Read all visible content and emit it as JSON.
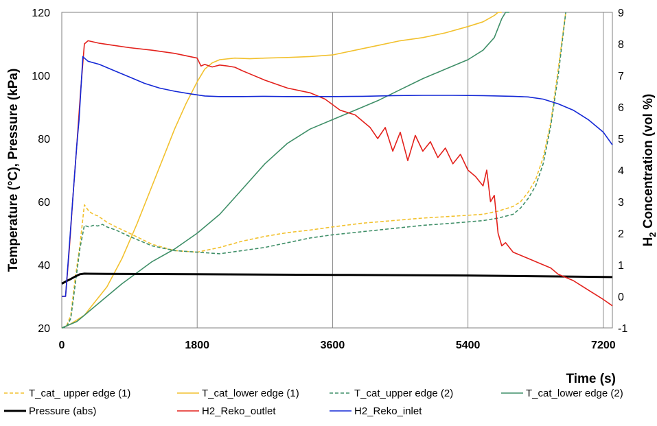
{
  "chart_data": {
    "type": "line",
    "title": "",
    "xlabel": "Time (s)",
    "ylabel_left": "Temperature (°C), Pressure (kPa)",
    "ylabel_right_main": "H",
    "ylabel_right_sub": "2",
    "ylabel_right_rest": " Concentration (vol %)",
    "xlim": [
      0,
      7320
    ],
    "ylim_left": [
      20,
      120
    ],
    "ylim_right": [
      -1,
      9
    ],
    "x_ticks": [
      0,
      1800,
      3600,
      5400,
      7200
    ],
    "y_left_ticks": [
      20,
      40,
      60,
      80,
      100,
      120
    ],
    "y_right_ticks": [
      -1,
      0,
      1,
      2,
      3,
      4,
      5,
      6,
      7,
      8,
      9
    ],
    "grid": "vertical",
    "legend_position": "bottom",
    "series": [
      {
        "name": "T_cat_ upper edge (1)",
        "axis": "left",
        "color": "#f2c12e",
        "dash": "dashed",
        "x": [
          0,
          60,
          120,
          180,
          240,
          300,
          360,
          420,
          480,
          600,
          720,
          900,
          1200,
          1500,
          1800,
          2100,
          2400,
          2700,
          3000,
          3300,
          3600,
          4000,
          4400,
          4800,
          5200,
          5600,
          5800,
          6000,
          6100,
          6200,
          6300,
          6400,
          6500,
          6600,
          6700
        ],
        "y": [
          20,
          20.5,
          24,
          36,
          46,
          59,
          57,
          56,
          55.5,
          53.5,
          52,
          50,
          46.5,
          44.5,
          44,
          45.5,
          47.5,
          49,
          50.2,
          51,
          52,
          53.2,
          54,
          54.8,
          55.4,
          56,
          57,
          58.5,
          60,
          63,
          67,
          74,
          85,
          102,
          120
        ]
      },
      {
        "name": "T_cat_lower edge (1)",
        "axis": "left",
        "color": "#f2c12e",
        "dash": "solid",
        "x": [
          0,
          100,
          200,
          300,
          400,
          600,
          800,
          1000,
          1200,
          1400,
          1500,
          1650,
          1800,
          1900,
          2000,
          2100,
          2300,
          2500,
          2700,
          3000,
          3300,
          3600,
          3900,
          4200,
          4500,
          4800,
          5100,
          5400,
          5600,
          5750,
          5800,
          5850
        ],
        "y": [
          20,
          21,
          22.5,
          24,
          27,
          33,
          42,
          53,
          65,
          77,
          83,
          91,
          98,
          102,
          104,
          105,
          105.5,
          105.3,
          105.5,
          105.7,
          106,
          106.5,
          108,
          109.5,
          111,
          112,
          113.5,
          115.5,
          117,
          119,
          120,
          120
        ]
      },
      {
        "name": "T_cat_upper edge (2)",
        "axis": "left",
        "color": "#3f8f68",
        "dash": "dashed",
        "x": [
          0,
          60,
          120,
          180,
          240,
          300,
          360,
          420,
          480,
          540,
          600,
          720,
          900,
          1200,
          1500,
          1800,
          2100,
          2400,
          2700,
          3000,
          3300,
          3600,
          4000,
          4400,
          4800,
          5200,
          5600,
          5800,
          6000,
          6100,
          6200,
          6300,
          6400,
          6500,
          6600,
          6700
        ],
        "y": [
          20,
          20.2,
          23,
          34,
          45,
          52.5,
          52,
          52.5,
          52.3,
          52.8,
          52,
          51,
          49,
          46,
          44.5,
          44,
          43.5,
          44.5,
          45.5,
          47,
          48.5,
          49.5,
          50.5,
          51.5,
          52.5,
          53.2,
          54,
          54.8,
          56,
          58,
          61,
          65,
          72,
          84,
          100,
          120
        ]
      },
      {
        "name": "T_cat_lower edge (2)",
        "axis": "left",
        "color": "#3f8f68",
        "dash": "solid",
        "x": [
          0,
          200,
          400,
          600,
          800,
          1000,
          1200,
          1500,
          1800,
          2100,
          2400,
          2700,
          3000,
          3300,
          3600,
          3900,
          4200,
          4500,
          4800,
          5100,
          5400,
          5600,
          5750,
          5850,
          5900,
          5950
        ],
        "y": [
          20,
          22,
          26,
          30,
          34,
          37.5,
          41,
          45,
          50,
          56,
          64,
          72,
          78.5,
          83,
          86,
          89,
          92,
          95.5,
          99,
          102,
          105,
          108,
          112,
          118,
          120,
          120
        ]
      },
      {
        "name": "Pressure (abs)",
        "axis": "left",
        "color": "#000000",
        "dash": "solid",
        "x": [
          0,
          60,
          120,
          180,
          240,
          300,
          600,
          1800,
          3600,
          5400,
          6600,
          7320
        ],
        "y": [
          34,
          34.8,
          35.5,
          36.3,
          37,
          37.2,
          37.1,
          37,
          36.8,
          36.6,
          36.3,
          36.1
        ]
      },
      {
        "name": "H2_Reko_outlet",
        "axis": "left",
        "color": "#e3211c",
        "dash": "solid",
        "x": [
          0,
          50,
          100,
          150,
          200,
          250,
          300,
          350,
          500,
          700,
          900,
          1200,
          1500,
          1800,
          1850,
          1900,
          2000,
          2100,
          2200,
          2300,
          2400,
          2500,
          2700,
          3000,
          3300,
          3500,
          3700,
          3900,
          4100,
          4200,
          4300,
          4400,
          4500,
          4600,
          4700,
          4800,
          4900,
          5000,
          5100,
          5200,
          5300,
          5400,
          5500,
          5600,
          5650,
          5700,
          5750,
          5800,
          5850,
          5900,
          6000,
          6200,
          6400,
          6500,
          6600,
          6700,
          6800,
          6900,
          7000,
          7100,
          7200,
          7320
        ],
        "y": [
          30,
          30,
          45,
          62,
          78,
          95,
          110,
          111,
          110.2,
          109.5,
          108.8,
          108,
          107,
          105.5,
          103,
          103.5,
          102.7,
          103.3,
          103,
          102.6,
          101.5,
          100.5,
          98.5,
          96,
          94.5,
          92.5,
          89,
          87.5,
          83.5,
          80,
          83.5,
          76,
          82,
          73,
          81,
          76,
          79,
          74,
          77,
          72,
          75,
          70,
          68,
          65,
          70,
          60,
          62,
          50,
          46,
          47,
          44,
          42,
          40,
          39,
          37,
          36,
          35,
          33.5,
          32,
          30.5,
          29,
          27
        ]
      },
      {
        "name": "H2_Reko_inlet",
        "axis": "left",
        "color": "#1428d6",
        "dash": "solid",
        "x": [
          0,
          50,
          100,
          150,
          200,
          230,
          280,
          300,
          350,
          500,
          700,
          900,
          1100,
          1300,
          1500,
          1700,
          1900,
          2100,
          2400,
          2700,
          3000,
          3300,
          3600,
          4000,
          4400,
          4800,
          5200,
          5600,
          6000,
          6200,
          6400,
          6600,
          6800,
          7000,
          7200,
          7320
        ],
        "y": [
          30,
          30,
          46,
          62,
          78,
          86,
          106,
          105.5,
          104.5,
          103.5,
          101.5,
          99.5,
          97.5,
          96,
          95,
          94.2,
          93.5,
          93.3,
          93.3,
          93.4,
          93.3,
          93.3,
          93.3,
          93.4,
          93.6,
          93.7,
          93.7,
          93.6,
          93.4,
          93.2,
          92.5,
          91,
          89,
          86,
          82,
          78
        ]
      }
    ]
  },
  "legend_rows": [
    [
      "T_cat_ upper edge (1)",
      "T_cat_lower edge (1)",
      "T_cat_upper edge (2)",
      "T_cat_lower edge (2)"
    ],
    [
      "Pressure (abs)",
      "H2_Reko_outlet",
      "H2_Reko_inlet"
    ]
  ]
}
